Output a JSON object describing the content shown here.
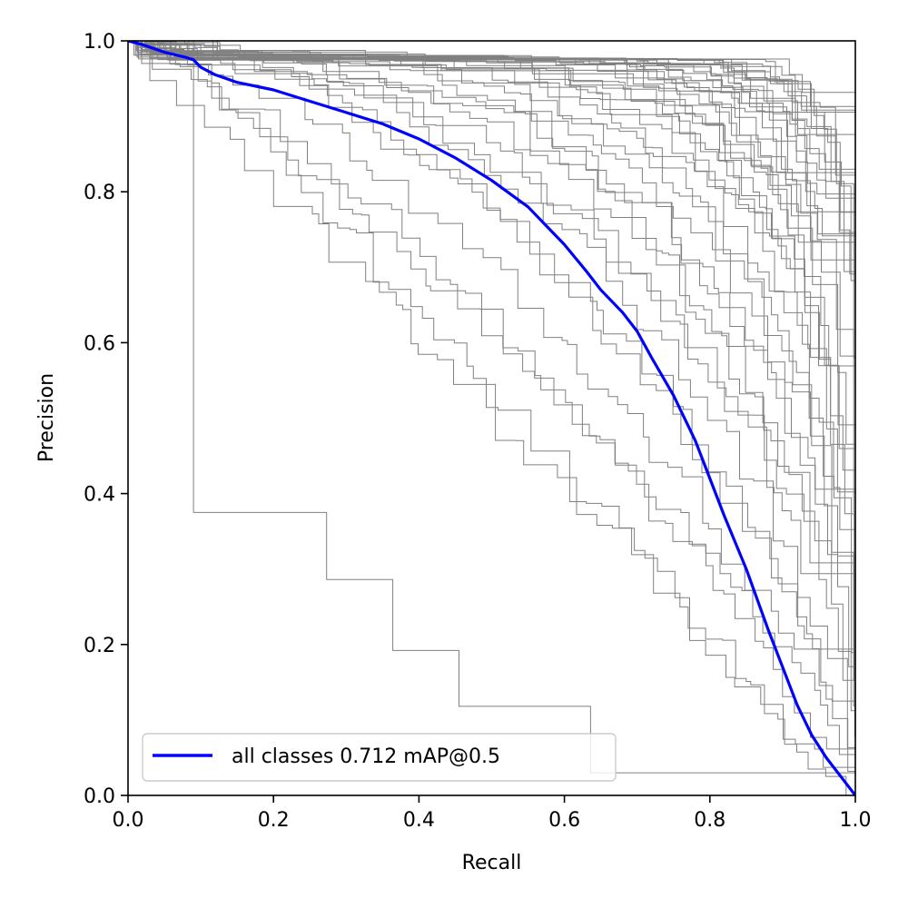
{
  "chart_data": {
    "type": "line",
    "title": "",
    "xlabel": "Recall",
    "ylabel": "Precision",
    "xlim": [
      0.0,
      1.0
    ],
    "ylim": [
      0.0,
      1.0
    ],
    "x_ticks": [
      "0.0",
      "0.2",
      "0.4",
      "0.6",
      "0.8",
      "1.0"
    ],
    "y_ticks": [
      "0.0",
      "0.2",
      "0.4",
      "0.6",
      "0.8",
      "1.0"
    ],
    "grid": false,
    "legend": {
      "placement": "lower-left",
      "entries": [
        "all classes 0.712 mAP@0.5"
      ]
    },
    "colors": {
      "per_class": "#808080",
      "all_classes": "#0000ff"
    },
    "per_class_shapes": [
      {
        "k": 1.0,
        "c": 1.0
      },
      {
        "k": 1.3,
        "c": 1.1
      },
      {
        "k": 1.5,
        "c": 1.2
      },
      {
        "k": 1.7,
        "c": 1.4
      },
      {
        "k": 2.0,
        "c": 1.5
      },
      {
        "k": 2.2,
        "c": 1.6
      },
      {
        "k": 2.5,
        "c": 1.8
      },
      {
        "k": 2.8,
        "c": 2.0
      },
      {
        "k": 3.0,
        "c": 2.2
      },
      {
        "k": 3.3,
        "c": 2.4
      },
      {
        "k": 3.6,
        "c": 2.6
      },
      {
        "k": 4.0,
        "c": 2.8
      },
      {
        "k": 4.4,
        "c": 3.0
      },
      {
        "k": 4.8,
        "c": 3.3
      },
      {
        "k": 5.2,
        "c": 3.5
      },
      {
        "k": 5.7,
        "c": 3.8
      },
      {
        "k": 6.2,
        "c": 4.0
      },
      {
        "k": 6.8,
        "c": 4.4
      },
      {
        "k": 7.5,
        "c": 4.8
      },
      {
        "k": 8.2,
        "c": 5.2
      },
      {
        "k": 9.0,
        "c": 5.6
      },
      {
        "k": 10.0,
        "c": 6.0
      },
      {
        "k": 11.0,
        "c": 6.5
      },
      {
        "k": 12.0,
        "c": 7.0
      },
      {
        "k": 1.2,
        "c": 0.9
      },
      {
        "k": 1.8,
        "c": 1.3
      },
      {
        "k": 2.6,
        "c": 1.7
      },
      {
        "k": 3.4,
        "c": 2.1
      },
      {
        "k": 4.2,
        "c": 2.5
      },
      {
        "k": 5.0,
        "c": 2.9
      },
      {
        "k": 6.0,
        "c": 3.2
      },
      {
        "k": 7.0,
        "c": 3.6
      },
      {
        "k": 8.5,
        "c": 4.2
      },
      {
        "k": 9.5,
        "c": 4.6
      },
      {
        "k": 11.5,
        "c": 5.4
      },
      {
        "k": 13.0,
        "c": 6.2
      },
      {
        "k": 1.1,
        "c": 1.3
      },
      {
        "k": 1.9,
        "c": 1.9
      },
      {
        "k": 2.4,
        "c": 2.3
      },
      {
        "k": 3.8,
        "c": 3.1
      },
      {
        "k": 4.6,
        "c": 3.7
      },
      {
        "k": 5.5,
        "c": 4.3
      },
      {
        "k": 6.5,
        "c": 5.0
      },
      {
        "k": 7.8,
        "c": 5.8
      },
      {
        "k": 9.2,
        "c": 6.6
      },
      {
        "k": 10.5,
        "c": 7.5
      },
      {
        "k": 12.5,
        "c": 8.0
      },
      {
        "k": 14.0,
        "c": 9.0
      }
    ],
    "outlier_steps": [
      [
        0.0,
        1.0
      ],
      [
        0.09,
        1.0
      ],
      [
        0.09,
        0.375
      ],
      [
        0.273,
        0.375
      ],
      [
        0.273,
        0.286
      ],
      [
        0.364,
        0.286
      ],
      [
        0.364,
        0.192
      ],
      [
        0.455,
        0.192
      ],
      [
        0.455,
        0.118
      ],
      [
        0.636,
        0.118
      ],
      [
        0.636,
        0.03
      ],
      [
        1.0,
        0.03
      ]
    ],
    "series": [
      {
        "name": "all classes 0.712 mAP@0.5",
        "x": [
          0.0,
          0.02,
          0.05,
          0.08,
          0.09,
          0.1,
          0.12,
          0.15,
          0.2,
          0.25,
          0.3,
          0.35,
          0.4,
          0.45,
          0.5,
          0.55,
          0.6,
          0.63,
          0.65,
          0.68,
          0.7,
          0.72,
          0.75,
          0.78,
          0.8,
          0.82,
          0.85,
          0.88,
          0.9,
          0.92,
          0.94,
          0.96,
          0.98,
          1.0
        ],
        "y": [
          1.0,
          0.995,
          0.985,
          0.978,
          0.975,
          0.965,
          0.955,
          0.945,
          0.935,
          0.92,
          0.905,
          0.89,
          0.87,
          0.845,
          0.815,
          0.78,
          0.73,
          0.695,
          0.67,
          0.64,
          0.615,
          0.58,
          0.53,
          0.47,
          0.42,
          0.37,
          0.3,
          0.22,
          0.17,
          0.12,
          0.08,
          0.05,
          0.025,
          0.0
        ]
      }
    ]
  }
}
